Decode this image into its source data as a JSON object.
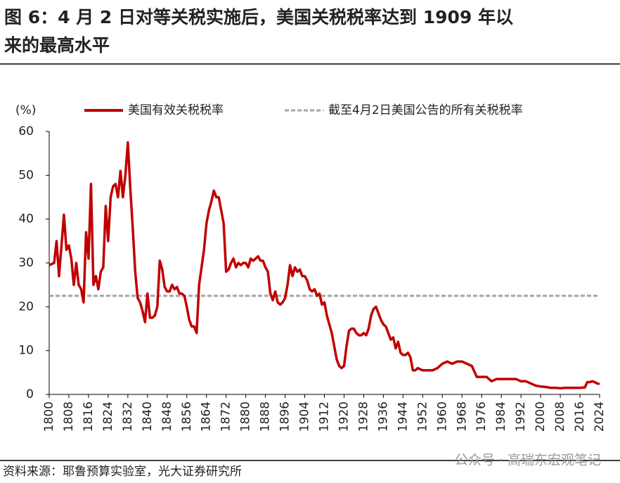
{
  "chart_data": {
    "type": "line",
    "title": "图 6：4 月 2 日对等关税实施后，美国关税税率达到 1909 年以来的最高水平",
    "title_line1": "图 6：4 月 2 日对等关税实施后，美国关税税率达到 1909 年以",
    "title_line2": "来的最高水平",
    "ylabel": "(%)",
    "source": "资料来源：耶鲁预算实验室，光大证券研究所",
    "watermark": "公众号 · 高瑞东宏观笔记",
    "x": [
      1800,
      1802,
      1803,
      1804,
      1806,
      1807,
      1808,
      1809,
      1810,
      1811,
      1812,
      1813,
      1814,
      1815,
      1816,
      1817,
      1818,
      1819,
      1820,
      1821,
      1822,
      1823,
      1824,
      1825,
      1826,
      1827,
      1828,
      1829,
      1830,
      1831,
      1832,
      1833,
      1834,
      1835,
      1836,
      1837,
      1838,
      1839,
      1840,
      1841,
      1842,
      1843,
      1844,
      1845,
      1846,
      1847,
      1848,
      1849,
      1850,
      1851,
      1852,
      1853,
      1854,
      1855,
      1856,
      1857,
      1858,
      1859,
      1860,
      1861,
      1862,
      1863,
      1864,
      1865,
      1866,
      1867,
      1868,
      1869,
      1870,
      1871,
      1872,
      1873,
      1874,
      1875,
      1876,
      1877,
      1878,
      1879,
      1880,
      1881,
      1882,
      1883,
      1884,
      1885,
      1886,
      1887,
      1888,
      1889,
      1890,
      1891,
      1892,
      1893,
      1894,
      1895,
      1896,
      1897,
      1898,
      1899,
      1900,
      1901,
      1902,
      1903,
      1904,
      1905,
      1906,
      1907,
      1908,
      1909,
      1910,
      1911,
      1912,
      1913,
      1914,
      1915,
      1916,
      1917,
      1918,
      1919,
      1920,
      1921,
      1922,
      1923,
      1924,
      1925,
      1926,
      1927,
      1928,
      1929,
      1930,
      1931,
      1932,
      1933,
      1934,
      1935,
      1936,
      1937,
      1938,
      1939,
      1940,
      1941,
      1942,
      1943,
      1944,
      1945,
      1946,
      1947,
      1948,
      1949,
      1950,
      1952,
      1954,
      1956,
      1958,
      1960,
      1962,
      1964,
      1966,
      1968,
      1970,
      1972,
      1974,
      1976,
      1978,
      1980,
      1982,
      1984,
      1986,
      1988,
      1990,
      1992,
      1994,
      1996,
      1998,
      2000,
      2002,
      2004,
      2006,
      2008,
      2010,
      2012,
      2014,
      2016,
      2018,
      2019,
      2020,
      2021,
      2022,
      2023,
      2024
    ],
    "series": [
      {
        "name": "美国有效关税税率",
        "color": "#c00000",
        "values": [
          29.5,
          30,
          35,
          27,
          41,
          33,
          34,
          31,
          25,
          30,
          25,
          24,
          21,
          37,
          31,
          48,
          25,
          27,
          24,
          28,
          29,
          43,
          35,
          45,
          47.5,
          48,
          45,
          51,
          45,
          50,
          57.5,
          47,
          38,
          28,
          22,
          21,
          19,
          16.5,
          23,
          17.5,
          17.5,
          18,
          20,
          30.5,
          28.5,
          24.5,
          23.5,
          23.5,
          25,
          24,
          24.5,
          23,
          23,
          22.5,
          20,
          17,
          15.5,
          15.5,
          14,
          25,
          29,
          33,
          39,
          42,
          44,
          46.5,
          45,
          45,
          42,
          39,
          28,
          28.5,
          30,
          31,
          29,
          30,
          29.5,
          30,
          30,
          29,
          31,
          30.5,
          31,
          31.5,
          30.5,
          30.5,
          29,
          28,
          23,
          21.5,
          23.5,
          21,
          20.5,
          21,
          22,
          25,
          29.5,
          27,
          29,
          28,
          28.5,
          27,
          27,
          26,
          24,
          23.5,
          24,
          22.5,
          23,
          20.5,
          21,
          18,
          16,
          14,
          11,
          8,
          6.5,
          6,
          6.5,
          11,
          14.5,
          15,
          15,
          14,
          13.5,
          13.5,
          14,
          13.5,
          15,
          18,
          19.5,
          20,
          18.5,
          17,
          16,
          15.5,
          14,
          12.5,
          13,
          10.5,
          12,
          9.5,
          9,
          9,
          9.5,
          8.5,
          5.5,
          5.5,
          6,
          5.5,
          5.5,
          5.5,
          6,
          7,
          7.5,
          7,
          7.5,
          7.5,
          7,
          6.5,
          4,
          4,
          4,
          3,
          3.5,
          3.5,
          3.5,
          3.5,
          3.5,
          3,
          3,
          2.5,
          2,
          1.8,
          1.7,
          1.5,
          1.5,
          1.4,
          1.5,
          1.5,
          1.5,
          1.5,
          1.6,
          2.8,
          2.8,
          3,
          2.8,
          2.5,
          2.4
        ]
      }
    ],
    "hline": {
      "name": "截至4月2日美国公告的所有关税税率",
      "value": 22.5,
      "color": "#a6a6a6"
    },
    "xlim": [
      1800,
      2024
    ],
    "xticks": [
      1800,
      1808,
      1816,
      1824,
      1832,
      1840,
      1848,
      1856,
      1864,
      1872,
      1880,
      1888,
      1896,
      1904,
      1912,
      1920,
      1928,
      1936,
      1944,
      1952,
      1960,
      1968,
      1976,
      1984,
      1992,
      2000,
      2008,
      2016,
      2024
    ],
    "ylim": [
      0,
      60
    ],
    "yticks": [
      0,
      10,
      20,
      30,
      40,
      50,
      60
    ]
  }
}
